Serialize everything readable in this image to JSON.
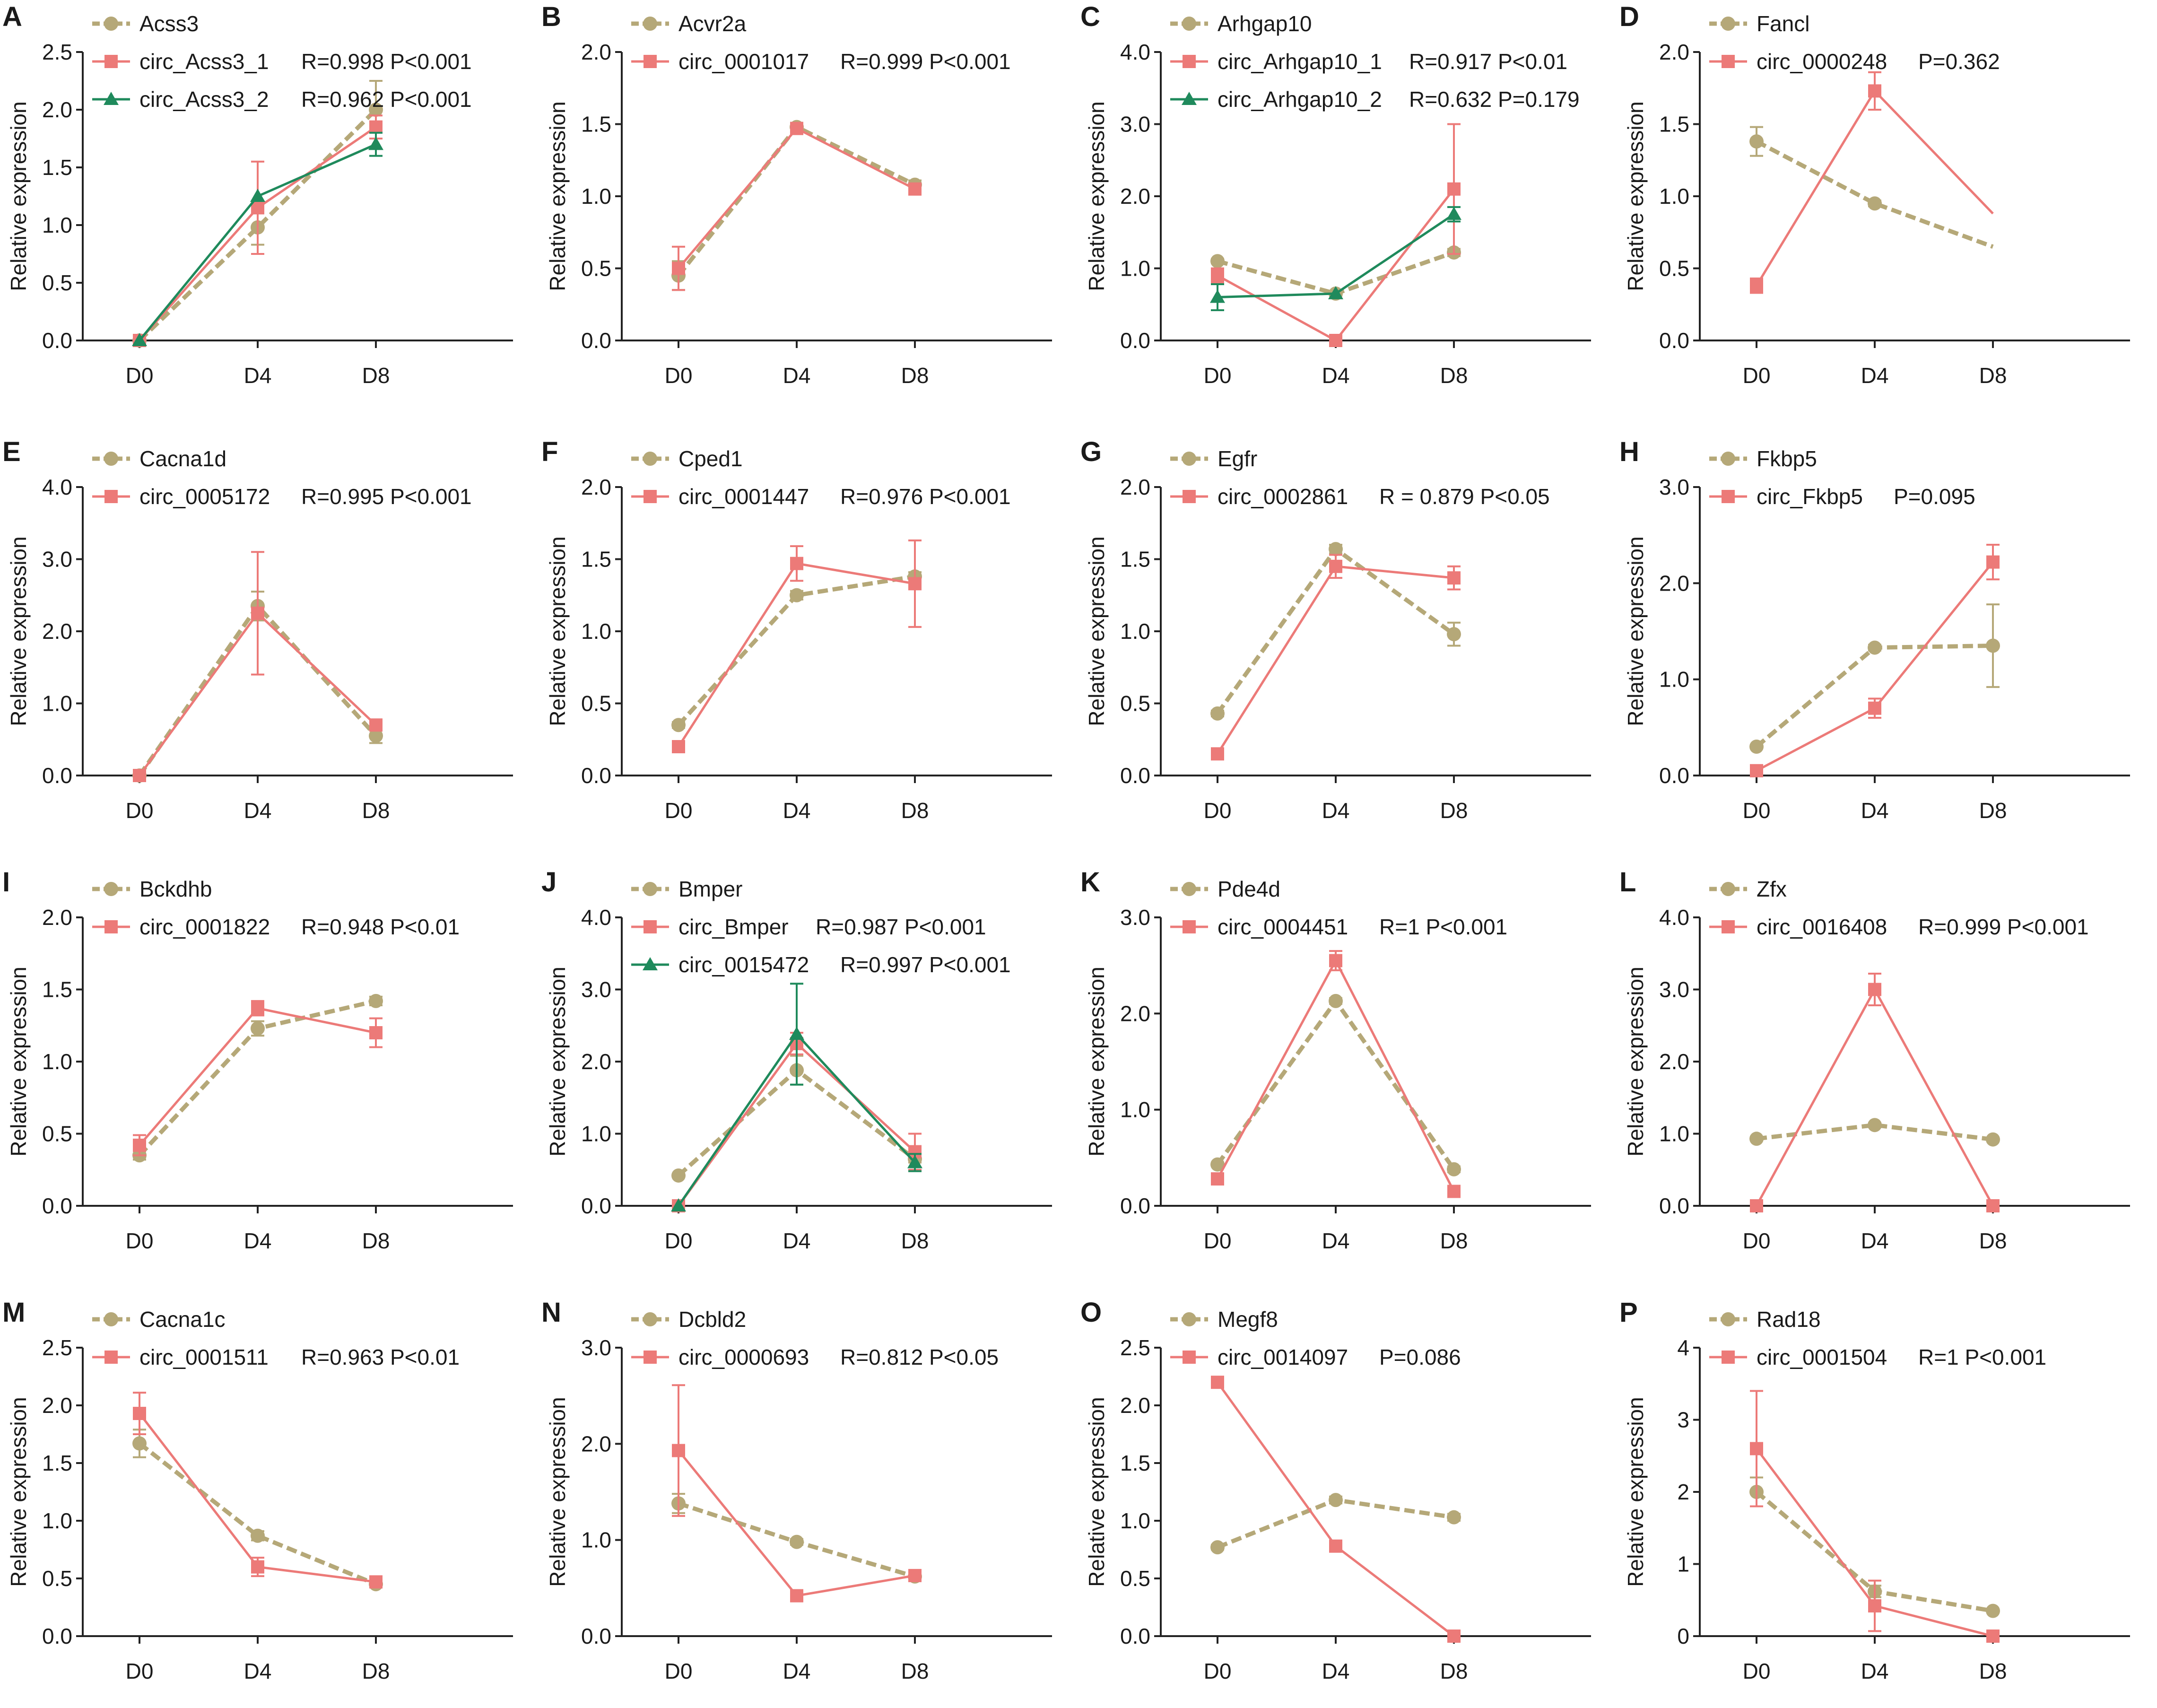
{
  "figure": {
    "y_axis_label": "Relative expression",
    "x_categories": [
      "D0",
      "D4",
      "D8"
    ],
    "colors": {
      "host": "#b5a878",
      "circ": "#ec7a78",
      "circ2": "#1f8a5c",
      "axis": "#222222"
    }
  },
  "chart_data": [
    {
      "panel": "A",
      "type": "line",
      "ylim": [
        0,
        2.5
      ],
      "yticks": [
        "0.0",
        "0.5",
        "1.0",
        "1.5",
        "2.0",
        "2.5"
      ],
      "series": [
        {
          "name": "Acss3",
          "role": "host",
          "values": [
            0.0,
            0.98,
            2.0
          ],
          "err": [
            0,
            0.15,
            0.25
          ]
        },
        {
          "name": "circ_Acss3_1",
          "role": "circ",
          "values": [
            0.0,
            1.15,
            1.85
          ],
          "err": [
            0,
            0.4,
            0.1
          ]
        },
        {
          "name": "circ_Acss3_2",
          "role": "circ2",
          "values": [
            0.0,
            1.25,
            1.7
          ],
          "err": [
            0,
            0,
            0.1
          ]
        }
      ],
      "stats": [
        {
          "series": 1,
          "text": "R=0.998 P<0.001"
        },
        {
          "series": 2,
          "text": "R=0.962 P<0.001"
        }
      ]
    },
    {
      "panel": "B",
      "type": "line",
      "ylim": [
        0,
        2.0
      ],
      "yticks": [
        "0.0",
        "0.5",
        "1.0",
        "1.5",
        "2.0"
      ],
      "series": [
        {
          "name": "Acvr2a",
          "role": "host",
          "values": [
            0.45,
            1.48,
            1.08
          ],
          "err": [
            0.1,
            0.03,
            0.03
          ]
        },
        {
          "name": "circ_0001017",
          "role": "circ",
          "values": [
            0.5,
            1.47,
            1.05
          ],
          "err": [
            0.15,
            0.02,
            0.03
          ]
        }
      ],
      "stats": [
        {
          "series": 1,
          "text": "R=0.999 P<0.001"
        }
      ]
    },
    {
      "panel": "C",
      "type": "line",
      "ylim": [
        0,
        4.0
      ],
      "yticks": [
        "0.0",
        "1.0",
        "2.0",
        "3.0",
        "4.0"
      ],
      "series": [
        {
          "name": "Arhgap10",
          "role": "host",
          "values": [
            1.1,
            0.65,
            1.22
          ],
          "err": [
            0.03,
            0.03,
            0.05
          ]
        },
        {
          "name": "circ_Arhgap10_1",
          "role": "circ",
          "values": [
            0.9,
            0.0,
            2.1
          ],
          "err": [
            0.1,
            0,
            0.9
          ]
        },
        {
          "name": "circ_Arhgap10_2",
          "role": "circ2",
          "values": [
            0.6,
            0.65,
            1.75
          ],
          "err": [
            0.18,
            0,
            0.1
          ]
        }
      ],
      "stats": [
        {
          "series": 1,
          "text": "R=0.917 P<0.01"
        },
        {
          "series": 2,
          "text": "R=0.632 P=0.179"
        }
      ]
    },
    {
      "panel": "D",
      "type": "line",
      "ylim": [
        0,
        2.0
      ],
      "yticks": [
        "0.0",
        "0.5",
        "1.0",
        "1.5",
        "2.0"
      ],
      "series": [
        {
          "name": "Fancl",
          "role": "host",
          "values": [
            1.38,
            0.95,
            0.65
          ],
          "err": [
            0.1,
            0.02,
            0
          ]
        },
        {
          "name": "circ_0000248",
          "role": "circ",
          "values": [
            0.38,
            1.73,
            0.88
          ],
          "err": [
            0.05,
            0.13,
            0
          ]
        }
      ],
      "markers_at_last": false,
      "stats": [
        {
          "series": 1,
          "text": "P=0.362"
        }
      ]
    },
    {
      "panel": "E",
      "type": "line",
      "ylim": [
        0,
        4.0
      ],
      "yticks": [
        "0.0",
        "1.0",
        "2.0",
        "3.0",
        "4.0"
      ],
      "series": [
        {
          "name": "Cacna1d",
          "role": "host",
          "values": [
            0.0,
            2.35,
            0.55
          ],
          "err": [
            0,
            0.2,
            0.1
          ]
        },
        {
          "name": "circ_0005172",
          "role": "circ",
          "values": [
            0.0,
            2.25,
            0.7
          ],
          "err": [
            0,
            0.85,
            0.05
          ]
        }
      ],
      "stats": [
        {
          "series": 1,
          "text": "R=0.995 P<0.001"
        }
      ]
    },
    {
      "panel": "F",
      "type": "line",
      "ylim": [
        0,
        2.0
      ],
      "yticks": [
        "0.0",
        "0.5",
        "1.0",
        "1.5",
        "2.0"
      ],
      "series": [
        {
          "name": "Cped1",
          "role": "host",
          "values": [
            0.35,
            1.25,
            1.38
          ],
          "err": [
            0.02,
            0.03,
            0.03
          ]
        },
        {
          "name": "circ_0001447",
          "role": "circ",
          "values": [
            0.2,
            1.47,
            1.33
          ],
          "err": [
            0.02,
            0.12,
            0.3
          ]
        }
      ],
      "stats": [
        {
          "series": 1,
          "text": "R=0.976 P<0.001"
        }
      ]
    },
    {
      "panel": "G",
      "type": "line",
      "ylim": [
        0,
        2.0
      ],
      "yticks": [
        "0.0",
        "0.5",
        "1.0",
        "1.5",
        "2.0"
      ],
      "series": [
        {
          "name": "Egfr",
          "role": "host",
          "values": [
            0.43,
            1.57,
            0.98
          ],
          "err": [
            0.02,
            0.03,
            0.08
          ]
        },
        {
          "name": "circ_0002861",
          "role": "circ",
          "values": [
            0.15,
            1.45,
            1.37
          ],
          "err": [
            0.02,
            0.08,
            0.08
          ]
        }
      ],
      "stats": [
        {
          "series": 1,
          "text": "R = 0.879 P<0.05"
        }
      ]
    },
    {
      "panel": "H",
      "type": "line",
      "ylim": [
        0,
        3.0
      ],
      "yticks": [
        "0.0",
        "1.0",
        "2.0",
        "3.0"
      ],
      "series": [
        {
          "name": "Fkbp5",
          "role": "host",
          "values": [
            0.3,
            1.33,
            1.35
          ],
          "err": [
            0.02,
            0.03,
            0.43
          ]
        },
        {
          "name": "circ_Fkbp5",
          "role": "circ",
          "values": [
            0.05,
            0.7,
            2.22
          ],
          "err": [
            0.02,
            0.1,
            0.18
          ]
        }
      ],
      "stats": [
        {
          "series": 1,
          "text": "P=0.095"
        }
      ]
    },
    {
      "panel": "I",
      "type": "line",
      "ylim": [
        0,
        2.0
      ],
      "yticks": [
        "0.0",
        "0.5",
        "1.0",
        "1.5",
        "2.0"
      ],
      "series": [
        {
          "name": "Bckdhb",
          "role": "host",
          "values": [
            0.35,
            1.23,
            1.42
          ],
          "err": [
            0.03,
            0.05,
            0.03
          ]
        },
        {
          "name": "circ_0001822",
          "role": "circ",
          "values": [
            0.42,
            1.37,
            1.2
          ],
          "err": [
            0.07,
            0.05,
            0.1
          ]
        }
      ],
      "stats": [
        {
          "series": 1,
          "text": "R=0.948 P<0.01"
        }
      ]
    },
    {
      "panel": "J",
      "type": "line",
      "ylim": [
        0,
        4.0
      ],
      "yticks": [
        "0.0",
        "1.0",
        "2.0",
        "3.0",
        "4.0"
      ],
      "series": [
        {
          "name": "Bmper",
          "role": "host",
          "values": [
            0.42,
            1.88,
            0.65
          ],
          "err": [
            0.02,
            0.2,
            0.05
          ]
        },
        {
          "name": "circ_Bmper",
          "role": "circ",
          "values": [
            0.0,
            2.25,
            0.75
          ],
          "err": [
            0,
            0.15,
            0.25
          ]
        },
        {
          "name": "circ_0015472",
          "role": "circ2",
          "values": [
            0.0,
            2.38,
            0.6
          ],
          "err": [
            0,
            0.7,
            0.12
          ]
        }
      ],
      "stats": [
        {
          "series": 1,
          "text": "R=0.987 P<0.001"
        },
        {
          "series": 2,
          "text": "R=0.997 P<0.001"
        }
      ]
    },
    {
      "panel": "K",
      "type": "line",
      "ylim": [
        0,
        3.0
      ],
      "yticks": [
        "0.0",
        "1.0",
        "2.0",
        "3.0"
      ],
      "series": [
        {
          "name": "Pde4d",
          "role": "host",
          "values": [
            0.43,
            2.13,
            0.38
          ],
          "err": [
            0.02,
            0.03,
            0.03
          ]
        },
        {
          "name": "circ_0004451",
          "role": "circ",
          "values": [
            0.28,
            2.55,
            0.15
          ],
          "err": [
            0.05,
            0.1,
            0.02
          ]
        }
      ],
      "stats": [
        {
          "series": 1,
          "text": "R=1 P<0.001"
        }
      ]
    },
    {
      "panel": "L",
      "type": "line",
      "ylim": [
        0,
        4.0
      ],
      "yticks": [
        "0.0",
        "1.0",
        "2.0",
        "3.0",
        "4.0"
      ],
      "series": [
        {
          "name": "Zfx",
          "role": "host",
          "values": [
            0.93,
            1.12,
            0.92
          ],
          "err": [
            0.02,
            0.03,
            0.02
          ]
        },
        {
          "name": "circ_0016408",
          "role": "circ",
          "values": [
            0.0,
            3.0,
            0.0
          ],
          "err": [
            0,
            0.22,
            0
          ]
        }
      ],
      "stats": [
        {
          "series": 1,
          "text": "R=0.999 P<0.001"
        }
      ]
    },
    {
      "panel": "M",
      "type": "line",
      "ylim": [
        0,
        2.5
      ],
      "yticks": [
        "0.0",
        "0.5",
        "1.0",
        "1.5",
        "2.0",
        "2.5"
      ],
      "series": [
        {
          "name": "Cacna1c",
          "role": "host",
          "values": [
            1.67,
            0.87,
            0.45
          ],
          "err": [
            0.12,
            0.04,
            0.02
          ]
        },
        {
          "name": "circ_0001511",
          "role": "circ",
          "values": [
            1.93,
            0.6,
            0.47
          ],
          "err": [
            0.18,
            0.08,
            0.02
          ]
        }
      ],
      "stats": [
        {
          "series": 1,
          "text": "R=0.963 P<0.01"
        }
      ]
    },
    {
      "panel": "N",
      "type": "line",
      "ylim": [
        0,
        3.0
      ],
      "yticks": [
        "0.0",
        "1.0",
        "2.0",
        "3.0"
      ],
      "series": [
        {
          "name": "Dcbld2",
          "role": "host",
          "values": [
            1.38,
            0.98,
            0.62
          ],
          "err": [
            0.1,
            0.03,
            0.02
          ]
        },
        {
          "name": "circ_0000693",
          "role": "circ",
          "values": [
            1.93,
            0.42,
            0.63
          ],
          "err": [
            0.68,
            0.02,
            0.02
          ]
        }
      ],
      "stats": [
        {
          "series": 1,
          "text": "R=0.812 P<0.05"
        }
      ]
    },
    {
      "panel": "O",
      "type": "line",
      "ylim": [
        0,
        2.5
      ],
      "yticks": [
        "0.0",
        "0.5",
        "1.0",
        "1.5",
        "2.0",
        "2.5"
      ],
      "series": [
        {
          "name": "Megf8",
          "role": "host",
          "values": [
            0.77,
            1.18,
            1.03
          ],
          "err": [
            0.02,
            0.03,
            0.03
          ]
        },
        {
          "name": "circ_0014097",
          "role": "circ",
          "values": [
            2.2,
            0.78,
            0.0
          ],
          "err": [
            0.02,
            0.02,
            0
          ]
        }
      ],
      "stats": [
        {
          "series": 1,
          "text": "P=0.086"
        }
      ]
    },
    {
      "panel": "P",
      "type": "line",
      "ylim": [
        0,
        4
      ],
      "yticks": [
        "0",
        "1",
        "2",
        "3",
        "4"
      ],
      "series": [
        {
          "name": "Rad18",
          "role": "host",
          "values": [
            2.0,
            0.62,
            0.35
          ],
          "err": [
            0.2,
            0.08,
            0.02
          ]
        },
        {
          "name": "circ_0001504",
          "role": "circ",
          "values": [
            2.6,
            0.42,
            0.0
          ],
          "err": [
            0.8,
            0.35,
            0
          ]
        }
      ],
      "stats": [
        {
          "series": 1,
          "text": "R=1 P<0.001"
        }
      ]
    }
  ]
}
